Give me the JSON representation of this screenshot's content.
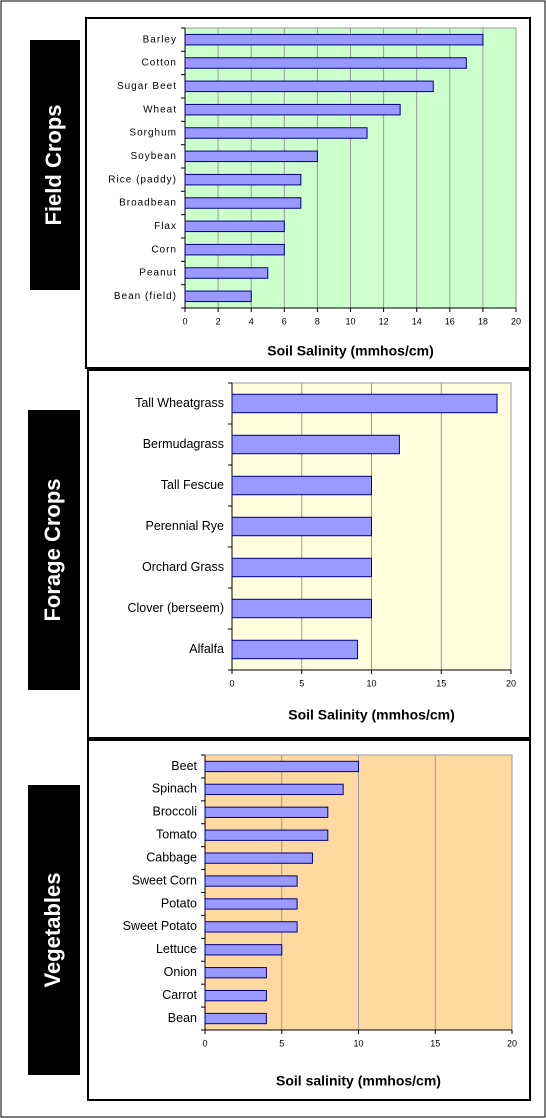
{
  "chart_data": [
    {
      "type": "bar",
      "orientation": "horizontal",
      "title": "Field Crops",
      "categories": [
        "Barley",
        "Cotton",
        "Sugar Beet",
        "Wheat",
        "Sorghum",
        "Soybean",
        "Rice (paddy)",
        "Broadbean",
        "Flax",
        "Corn",
        "Peanut",
        "Bean (field)"
      ],
      "values": [
        18,
        17,
        15,
        13,
        11,
        8,
        7,
        7,
        6,
        6,
        5,
        4
      ],
      "color": "#9999ff",
      "plot_color": "#ccffcc",
      "x_label": "Soil Salinity (mmhos/cm)",
      "xlim": [
        0,
        20
      ],
      "xticks": [
        0,
        2,
        4,
        6,
        8,
        10,
        12,
        14,
        16,
        18,
        20
      ],
      "grid": true
    },
    {
      "type": "bar",
      "orientation": "horizontal",
      "title": "Forage Crops",
      "categories": [
        "Tall Wheatgrass",
        "Bermudagrass",
        "Tall Fescue",
        "Perennial Rye",
        "Orchard Grass",
        "Clover (berseem)",
        "Alfalfa"
      ],
      "values": [
        19,
        12,
        10,
        10,
        10,
        10,
        9
      ],
      "color": "#9999ff",
      "plot_color": "#ffffdd",
      "x_label": "Soil Salinity (mmhos/cm)",
      "xlim": [
        0,
        20
      ],
      "xticks": [
        0,
        5,
        10,
        15,
        20
      ],
      "grid": true
    },
    {
      "type": "bar",
      "orientation": "horizontal",
      "title": "Vegetables",
      "categories": [
        "Beet",
        "Spinach",
        "Broccoli",
        "Tomato",
        "Cabbage",
        "Sweet Corn",
        "Potato",
        "Sweet Potato",
        "Lettuce",
        "Onion",
        "Carrot",
        "Bean"
      ],
      "values": [
        10,
        9,
        8,
        8,
        7,
        6,
        6,
        6,
        5,
        4,
        4,
        4
      ],
      "color": "#9999ff",
      "plot_color": "#ffd9a0",
      "x_label": "Soil salinity (mmhos/cm)",
      "xlim": [
        0,
        20
      ],
      "xticks": [
        0,
        5,
        10,
        15,
        20
      ],
      "grid": true
    }
  ]
}
